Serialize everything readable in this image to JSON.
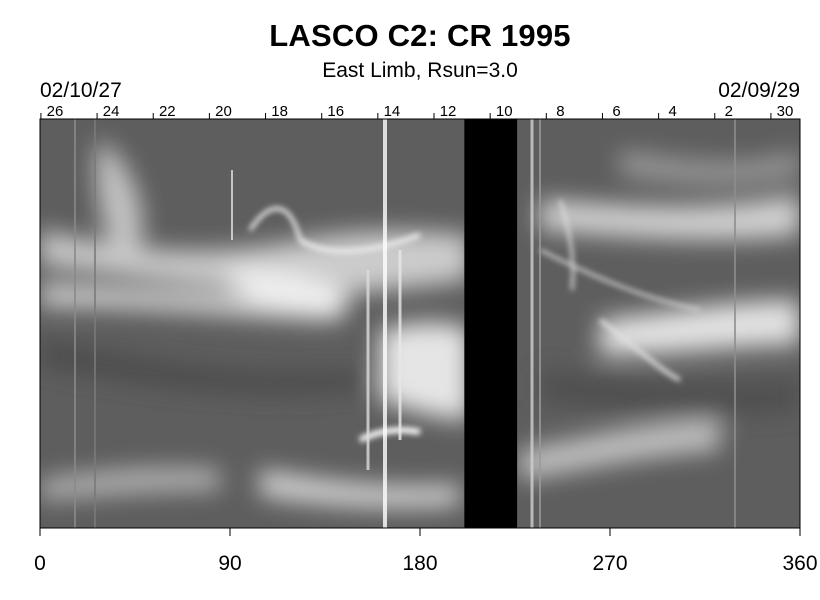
{
  "chart_data": {
    "type": "heatmap",
    "title": "LASCO C2: CR 1995",
    "subtitle": "East Limb, Rsun=3.0",
    "date_left": "02/10/27",
    "date_right": "02/09/29",
    "x_ticks": [
      "0",
      "90",
      "180",
      "270",
      "360"
    ],
    "xlim": [
      0,
      360
    ],
    "top_day_labels": [
      "26",
      "24",
      "22",
      "20",
      "18",
      "16",
      "14",
      "12",
      "10",
      "8",
      "6",
      "4",
      "2",
      "30"
    ],
    "data_gap": {
      "x_start": 201,
      "x_end": 226
    },
    "colormap": "grayscale"
  }
}
